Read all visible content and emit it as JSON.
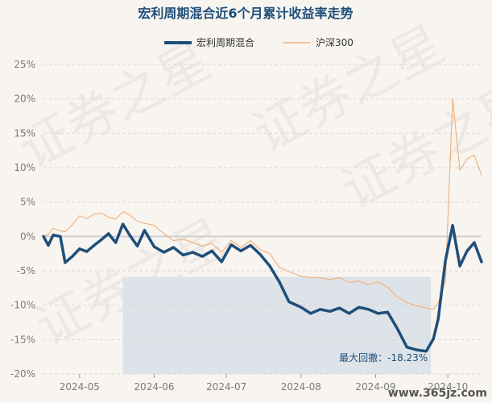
{
  "chart_data": {
    "type": "line",
    "title": "宏利周期混合近6个月累计收益率走势",
    "legend_position": "top-center",
    "ylim": [
      -20,
      25
    ],
    "yticks": [
      25,
      20,
      15,
      10,
      5,
      0,
      -5,
      -10,
      -15,
      -20
    ],
    "ytick_labels": [
      "25%",
      "20%",
      "15%",
      "10%",
      "5%",
      "0%",
      "-5%",
      "-10%",
      "-15%",
      "-20%"
    ],
    "x_ticks": [
      {
        "label": "2024-05",
        "date": "2024-05-01"
      },
      {
        "label": "2024-06",
        "date": "2024-06-01"
      },
      {
        "label": "2024-07",
        "date": "2024-07-01"
      },
      {
        "label": "2024-08",
        "date": "2024-08-01"
      },
      {
        "label": "2024-09",
        "date": "2024-09-01"
      },
      {
        "label": "2024-10",
        "date": "2024-10-01"
      }
    ],
    "xlim": [
      "2024-04-16",
      "2024-10-15"
    ],
    "grid": "horizontal dashed",
    "series": [
      {
        "name": "宏利周期混合",
        "color": "#1f4e79",
        "x": [
          "2024-04-16",
          "2024-04-18",
          "2024-04-20",
          "2024-04-23",
          "2024-04-25",
          "2024-04-28",
          "2024-05-01",
          "2024-05-04",
          "2024-05-07",
          "2024-05-10",
          "2024-05-13",
          "2024-05-16",
          "2024-05-19",
          "2024-05-22",
          "2024-05-25",
          "2024-05-28",
          "2024-06-01",
          "2024-06-05",
          "2024-06-09",
          "2024-06-13",
          "2024-06-17",
          "2024-06-21",
          "2024-06-25",
          "2024-06-29",
          "2024-07-03",
          "2024-07-07",
          "2024-07-11",
          "2024-07-15",
          "2024-07-19",
          "2024-07-23",
          "2024-07-27",
          "2024-08-01",
          "2024-08-05",
          "2024-08-09",
          "2024-08-13",
          "2024-08-17",
          "2024-08-21",
          "2024-08-25",
          "2024-08-29",
          "2024-09-02",
          "2024-09-06",
          "2024-09-10",
          "2024-09-14",
          "2024-09-18",
          "2024-09-22",
          "2024-09-25",
          "2024-09-27",
          "2024-09-30",
          "2024-10-03",
          "2024-10-06",
          "2024-10-09",
          "2024-10-12",
          "2024-10-15"
        ],
        "values": [
          0.0,
          -1.3,
          0.2,
          0.0,
          -3.8,
          -2.9,
          -1.8,
          -2.2,
          -1.3,
          -0.5,
          0.4,
          -0.9,
          1.8,
          0.1,
          -1.4,
          0.9,
          -1.5,
          -2.3,
          -1.6,
          -2.7,
          -2.3,
          -2.9,
          -2.1,
          -3.7,
          -1.2,
          -2.1,
          -1.3,
          -2.6,
          -4.3,
          -6.6,
          -9.5,
          -10.3,
          -11.2,
          -10.6,
          -10.9,
          -10.4,
          -11.2,
          -10.3,
          -10.6,
          -11.2,
          -11.0,
          -13.4,
          -16.1,
          -16.5,
          -16.7,
          -14.9,
          -12.0,
          -3.5,
          1.6,
          -4.3,
          -2.1,
          -0.9,
          -3.7
        ]
      },
      {
        "name": "沪深300",
        "color": "#f2b27e",
        "x": [
          "2024-04-16",
          "2024-04-18",
          "2024-04-20",
          "2024-04-23",
          "2024-04-25",
          "2024-04-28",
          "2024-05-01",
          "2024-05-04",
          "2024-05-07",
          "2024-05-10",
          "2024-05-13",
          "2024-05-16",
          "2024-05-19",
          "2024-05-22",
          "2024-05-25",
          "2024-05-28",
          "2024-06-01",
          "2024-06-05",
          "2024-06-09",
          "2024-06-13",
          "2024-06-17",
          "2024-06-21",
          "2024-06-25",
          "2024-06-29",
          "2024-07-03",
          "2024-07-07",
          "2024-07-11",
          "2024-07-15",
          "2024-07-19",
          "2024-07-23",
          "2024-07-27",
          "2024-08-01",
          "2024-08-05",
          "2024-08-09",
          "2024-08-13",
          "2024-08-17",
          "2024-08-21",
          "2024-08-25",
          "2024-08-29",
          "2024-09-02",
          "2024-09-06",
          "2024-09-10",
          "2024-09-14",
          "2024-09-18",
          "2024-09-22",
          "2024-09-25",
          "2024-09-27",
          "2024-09-30",
          "2024-10-03",
          "2024-10-06",
          "2024-10-09",
          "2024-10-12",
          "2024-10-15"
        ],
        "values": [
          0.0,
          0.3,
          1.2,
          0.8,
          0.7,
          1.7,
          3.0,
          2.6,
          3.2,
          3.4,
          2.8,
          2.5,
          3.6,
          3.1,
          2.2,
          1.9,
          1.6,
          0.4,
          -0.6,
          -0.4,
          -0.9,
          -1.4,
          -1.0,
          -2.3,
          -0.6,
          -1.6,
          -0.6,
          -1.9,
          -2.5,
          -4.5,
          -5.1,
          -5.8,
          -6.0,
          -6.0,
          -6.3,
          -6.0,
          -6.7,
          -6.5,
          -7.0,
          -6.6,
          -7.4,
          -8.8,
          -9.6,
          -10.1,
          -10.4,
          -10.6,
          -9.7,
          -6.5,
          20.0,
          9.6,
          11.3,
          11.8,
          8.9
        ]
      }
    ],
    "annotations": [
      {
        "text": "最大回撤：-18.23%",
        "x": "2024-09-24",
        "y": -18.23
      }
    ],
    "drawdown_range": [
      "2024-05-19",
      "2024-09-24"
    ],
    "shade_color": "#dde3e9",
    "watermark": "证券之星",
    "watermark_site": "www.365jz.com"
  }
}
